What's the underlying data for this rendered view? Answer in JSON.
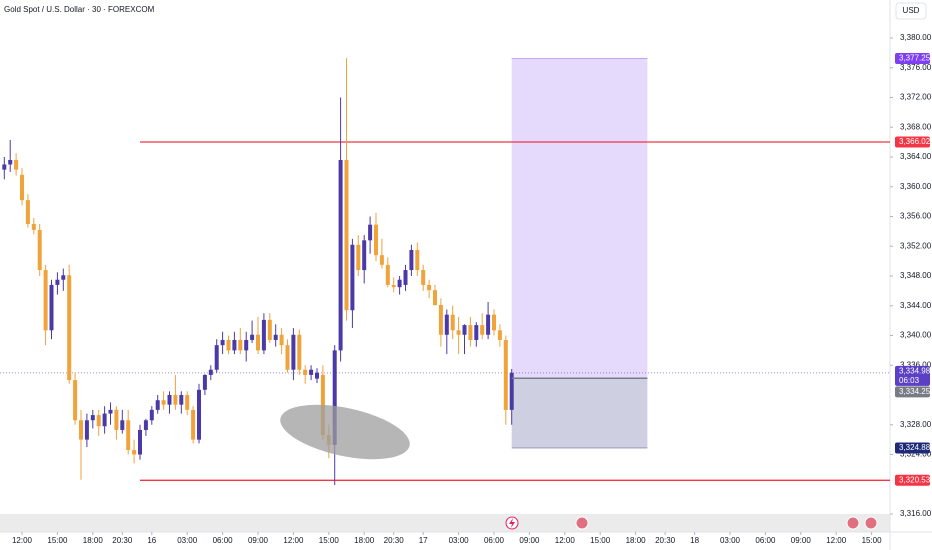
{
  "chart_data": {
    "type": "candlestick",
    "title": "Gold Spot / U.S. Dollar · 30 · FOREXCOM",
    "currency": "USD",
    "up_color": "#4a3aa8",
    "down_color": "#f0a23b",
    "grid": false,
    "ylim": [
      3313.58,
      3385.11
    ],
    "xlim": [
      -0.73,
      150.12
    ],
    "yticks": [
      {
        "value": 3380,
        "label": "3,380.00"
      },
      {
        "value": 3376,
        "label": "3,376.00"
      },
      {
        "value": 3372,
        "label": "3,372.00"
      },
      {
        "value": 3368,
        "label": "3,368.00"
      },
      {
        "value": 3364,
        "label": "3,364.00"
      },
      {
        "value": 3360,
        "label": "3,360.00"
      },
      {
        "value": 3356,
        "label": "3,356.00"
      },
      {
        "value": 3352,
        "label": "3,352.00"
      },
      {
        "value": 3348,
        "label": "3,348.00"
      },
      {
        "value": 3344,
        "label": "3,344.00"
      },
      {
        "value": 3340,
        "label": "3,340.00"
      },
      {
        "value": 3336,
        "label": "3,336.00"
      },
      {
        "value": 3328,
        "label": "3,328.00"
      },
      {
        "value": 3324,
        "label": "3,324.00"
      },
      {
        "value": 3316,
        "label": "3,316.00"
      }
    ],
    "xticks": [
      {
        "value": 3,
        "label": "12:00"
      },
      {
        "value": 9,
        "label": "15:00"
      },
      {
        "value": 15,
        "label": "18:00"
      },
      {
        "value": 20,
        "label": "20:30"
      },
      {
        "value": 25,
        "label": "16"
      },
      {
        "value": 31,
        "label": "03:00"
      },
      {
        "value": 37,
        "label": "06:00"
      },
      {
        "value": 43,
        "label": "09:00"
      },
      {
        "value": 49,
        "label": "12:00"
      },
      {
        "value": 55,
        "label": "15:00"
      },
      {
        "value": 61,
        "label": "18:00"
      },
      {
        "value": 66,
        "label": "20:30"
      },
      {
        "value": 71,
        "label": "17"
      },
      {
        "value": 77,
        "label": "03:00"
      },
      {
        "value": 83,
        "label": "06:00"
      },
      {
        "value": 89,
        "label": "09:00"
      },
      {
        "value": 95,
        "label": "12:00"
      },
      {
        "value": 101,
        "label": "15:00"
      },
      {
        "value": 107,
        "label": "18:00"
      },
      {
        "value": 112,
        "label": "20:30"
      },
      {
        "value": 117,
        "label": "18"
      },
      {
        "value": 123,
        "label": "03:00"
      },
      {
        "value": 129,
        "label": "06:00"
      },
      {
        "value": 135,
        "label": "09:00"
      },
      {
        "value": 141,
        "label": "12:00"
      },
      {
        "value": 147,
        "label": "15:00"
      }
    ],
    "candles": [
      [
        3362.3,
        3364.0,
        3361.0,
        3363.0
      ],
      [
        3363.0,
        3366.3,
        3362.0,
        3363.6
      ],
      [
        3363.6,
        3364.5,
        3361.5,
        3362.3
      ],
      [
        3361.6,
        3362.5,
        3357.5,
        3358.2
      ],
      [
        3358.2,
        3359.0,
        3354.5,
        3355.0
      ],
      [
        3355.0,
        3355.8,
        3353.6,
        3354.2
      ],
      [
        3354.2,
        3355.0,
        3348.0,
        3348.8
      ],
      [
        3348.8,
        3349.5,
        3338.7,
        3340.7
      ],
      [
        3340.7,
        3347.5,
        3339.5,
        3346.8
      ],
      [
        3346.8,
        3348.5,
        3345.5,
        3347.5
      ],
      [
        3347.5,
        3349.0,
        3346.0,
        3348.1
      ],
      [
        3348.1,
        3349.5,
        3333.5,
        3334.0
      ],
      [
        3334.0,
        3335.0,
        3328.0,
        3328.6
      ],
      [
        3328.6,
        3330.0,
        3320.6,
        3326.0
      ],
      [
        3326.0,
        3329.5,
        3325.0,
        3328.6
      ],
      [
        3328.6,
        3330.0,
        3327.5,
        3329.3
      ],
      [
        3329.3,
        3330.0,
        3326.5,
        3327.8
      ],
      [
        3327.8,
        3330.5,
        3326.8,
        3329.5
      ],
      [
        3329.5,
        3331.0,
        3328.0,
        3330.0
      ],
      [
        3330.0,
        3330.5,
        3326.0,
        3327.3
      ],
      [
        3327.3,
        3330.0,
        3326.8,
        3328.6
      ],
      [
        3328.6,
        3330.0,
        3324.0,
        3324.6
      ],
      [
        3324.6,
        3326.0,
        3322.8,
        3324.0
      ],
      [
        3324.0,
        3328.0,
        3323.3,
        3327.3
      ],
      [
        3327.3,
        3328.8,
        3326.5,
        3328.6
      ],
      [
        3328.6,
        3330.5,
        3328.0,
        3330.0
      ],
      [
        3330.0,
        3332.0,
        3329.5,
        3331.3
      ],
      [
        3331.3,
        3332.5,
        3330.0,
        3330.7
      ],
      [
        3330.7,
        3332.5,
        3329.5,
        3332.0
      ],
      [
        3332.0,
        3334.7,
        3330.0,
        3330.7
      ],
      [
        3330.7,
        3332.5,
        3329.5,
        3332.0
      ],
      [
        3332.0,
        3332.5,
        3329.3,
        3330.0
      ],
      [
        3330.0,
        3330.5,
        3325.5,
        3326.0
      ],
      [
        3326.0,
        3333.5,
        3325.5,
        3332.7
      ],
      [
        3332.7,
        3334.8,
        3332.0,
        3334.7
      ],
      [
        3334.7,
        3336.0,
        3334.0,
        3335.4
      ],
      [
        3335.4,
        3339.5,
        3335.0,
        3338.7
      ],
      [
        3338.7,
        3340.5,
        3337.5,
        3339.4
      ],
      [
        3339.4,
        3340.0,
        3337.5,
        3338.0
      ],
      [
        3338.0,
        3340.5,
        3337.5,
        3339.4
      ],
      [
        3339.4,
        3341.0,
        3337.5,
        3338.0
      ],
      [
        3338.0,
        3340.5,
        3336.5,
        3339.4
      ],
      [
        3339.4,
        3342.0,
        3339.0,
        3340.1
      ],
      [
        3340.1,
        3342.5,
        3337.5,
        3338.0
      ],
      [
        3338.0,
        3343.0,
        3337.5,
        3342.1
      ],
      [
        3342.1,
        3343.0,
        3339.0,
        3339.4
      ],
      [
        3339.4,
        3341.5,
        3338.5,
        3340.1
      ],
      [
        3340.1,
        3341.0,
        3337.5,
        3338.7
      ],
      [
        3338.7,
        3339.5,
        3335.0,
        3335.4
      ],
      [
        3335.4,
        3341.0,
        3334.0,
        3340.1
      ],
      [
        3340.1,
        3340.8,
        3334.7,
        3335.4
      ],
      [
        3335.4,
        3336.0,
        3333.5,
        3334.7
      ],
      [
        3334.7,
        3336.0,
        3334.0,
        3335.4
      ],
      [
        3334.2,
        3335.6,
        3333.6,
        3335.0
      ],
      [
        3334.7,
        3336.0,
        3326.0,
        3326.6
      ],
      [
        3326.6,
        3328.0,
        3323.5,
        3325.3
      ],
      [
        3325.3,
        3338.7,
        3319.9,
        3338.0
      ],
      [
        3338.0,
        3372.0,
        3336.5,
        3363.6
      ],
      [
        3363.6,
        3377.3,
        3342.0,
        3343.4
      ],
      [
        3343.4,
        3353.0,
        3341.0,
        3352.2
      ],
      [
        3352.2,
        3353.5,
        3348.0,
        3348.8
      ],
      [
        3348.8,
        3353.5,
        3347.0,
        3352.8
      ],
      [
        3352.8,
        3356.0,
        3351.0,
        3354.9
      ],
      [
        3354.9,
        3356.5,
        3350.0,
        3350.8
      ],
      [
        3350.8,
        3353.0,
        3349.0,
        3349.5
      ],
      [
        3349.5,
        3350.5,
        3346.5,
        3346.8
      ],
      [
        3346.8,
        3347.8,
        3345.8,
        3346.5
      ],
      [
        3346.5,
        3348.0,
        3345.5,
        3347.5
      ],
      [
        3346.8,
        3349.5,
        3346.0,
        3348.8
      ],
      [
        3348.8,
        3352.2,
        3348.0,
        3351.5
      ],
      [
        3351.5,
        3352.5,
        3348.0,
        3348.8
      ],
      [
        3348.8,
        3349.5,
        3346.0,
        3346.8
      ],
      [
        3346.8,
        3347.5,
        3345.0,
        3346.1
      ],
      [
        3346.1,
        3346.8,
        3344.0,
        3344.1
      ],
      [
        3344.1,
        3345.0,
        3338.5,
        3340.1
      ],
      [
        3340.1,
        3343.5,
        3337.5,
        3342.8
      ],
      [
        3342.8,
        3344.0,
        3339.5,
        3340.7
      ],
      [
        3340.7,
        3342.5,
        3337.5,
        3340.1
      ],
      [
        3340.1,
        3341.5,
        3337.5,
        3341.4
      ],
      [
        3341.4,
        3342.5,
        3338.5,
        3339.4
      ],
      [
        3339.4,
        3341.8,
        3338.5,
        3341.4
      ],
      [
        3341.4,
        3343.0,
        3339.5,
        3340.1
      ],
      [
        3340.1,
        3344.5,
        3339.5,
        3342.8
      ],
      [
        3342.8,
        3343.5,
        3340.0,
        3340.7
      ],
      [
        3340.7,
        3341.5,
        3338.5,
        3339.4
      ],
      [
        3339.4,
        3340.0,
        3328.0,
        3330.0
      ],
      [
        3330.0,
        3335.5,
        3328.0,
        3334.98
      ]
    ],
    "levels": [
      {
        "value": 3366.02,
        "label": "3,366.02",
        "color": "#f23645"
      },
      {
        "value": 3320.53,
        "label": "3,320.53",
        "color": "#f23645"
      }
    ],
    "position": {
      "start": 86,
      "end": 109,
      "target": {
        "value": 3377.25,
        "label": "3,377.25",
        "color": "#7e3ff2"
      },
      "entry": {
        "value": 3334.25,
        "label": "3,334.25",
        "color": "#787b86"
      },
      "stop": {
        "value": 3324.88,
        "label": "3,324.88",
        "color": "#1e2a78"
      }
    },
    "last_price": {
      "value": 3334.98,
      "label": "3,334.98",
      "countdown": "06:03",
      "color": "#5b3fc4"
    }
  }
}
